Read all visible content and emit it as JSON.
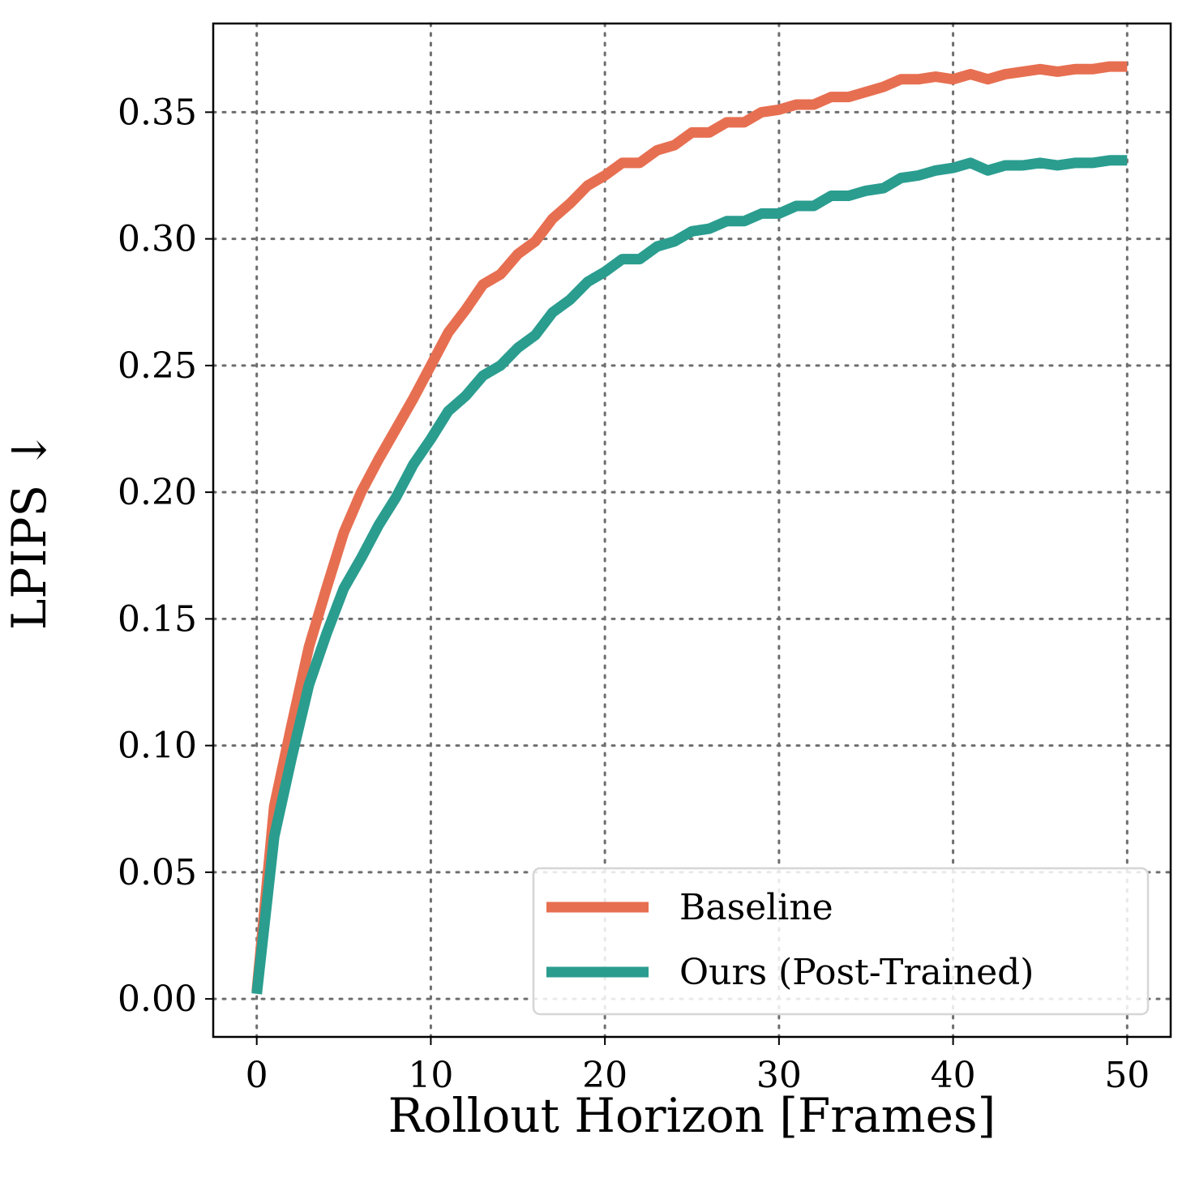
{
  "chart_data": {
    "type": "line",
    "title": "",
    "xlabel": "Rollout Horizon [Frames]",
    "ylabel": "LPIPS ↓",
    "xlim": [
      -2.5,
      52.5
    ],
    "ylim": [
      -0.015,
      0.385
    ],
    "xticks": [
      0,
      10,
      20,
      30,
      40,
      50
    ],
    "xtick_labels": [
      "0",
      "10",
      "20",
      "30",
      "40",
      "50"
    ],
    "yticks": [
      0.0,
      0.05,
      0.1,
      0.15,
      0.2,
      0.25,
      0.3,
      0.35
    ],
    "ytick_labels": [
      "0.00",
      "0.05",
      "0.10",
      "0.15",
      "0.20",
      "0.25",
      "0.30",
      "0.35"
    ],
    "grid": true,
    "legend_position": "lower-right",
    "x": [
      0,
      1,
      2,
      3,
      4,
      5,
      6,
      7,
      8,
      9,
      10,
      11,
      12,
      13,
      14,
      15,
      16,
      17,
      18,
      19,
      20,
      21,
      22,
      23,
      24,
      25,
      26,
      27,
      28,
      29,
      30,
      31,
      32,
      33,
      34,
      35,
      36,
      37,
      38,
      39,
      40,
      41,
      42,
      43,
      44,
      45,
      46,
      47,
      48,
      49,
      50
    ],
    "series": [
      {
        "name": "Baseline",
        "color": "#E76F51",
        "values": [
          0.003,
          0.076,
          0.108,
          0.139,
          0.162,
          0.184,
          0.2,
          0.213,
          0.225,
          0.237,
          0.25,
          0.263,
          0.272,
          0.282,
          0.286,
          0.294,
          0.299,
          0.308,
          0.314,
          0.321,
          0.325,
          0.33,
          0.33,
          0.335,
          0.337,
          0.342,
          0.342,
          0.346,
          0.346,
          0.35,
          0.351,
          0.353,
          0.353,
          0.356,
          0.356,
          0.358,
          0.36,
          0.363,
          0.363,
          0.364,
          0.363,
          0.365,
          0.363,
          0.365,
          0.366,
          0.367,
          0.366,
          0.367,
          0.367,
          0.368,
          0.368
        ]
      },
      {
        "name": "Ours (Post-Trained)",
        "color": "#2A9D8F",
        "values": [
          0.002,
          0.064,
          0.095,
          0.124,
          0.144,
          0.162,
          0.174,
          0.187,
          0.198,
          0.211,
          0.221,
          0.232,
          0.238,
          0.246,
          0.25,
          0.257,
          0.262,
          0.271,
          0.276,
          0.283,
          0.287,
          0.292,
          0.292,
          0.297,
          0.299,
          0.303,
          0.304,
          0.307,
          0.307,
          0.31,
          0.31,
          0.313,
          0.313,
          0.317,
          0.317,
          0.319,
          0.32,
          0.324,
          0.325,
          0.327,
          0.328,
          0.33,
          0.327,
          0.329,
          0.329,
          0.33,
          0.329,
          0.33,
          0.33,
          0.331,
          0.331
        ]
      }
    ]
  }
}
